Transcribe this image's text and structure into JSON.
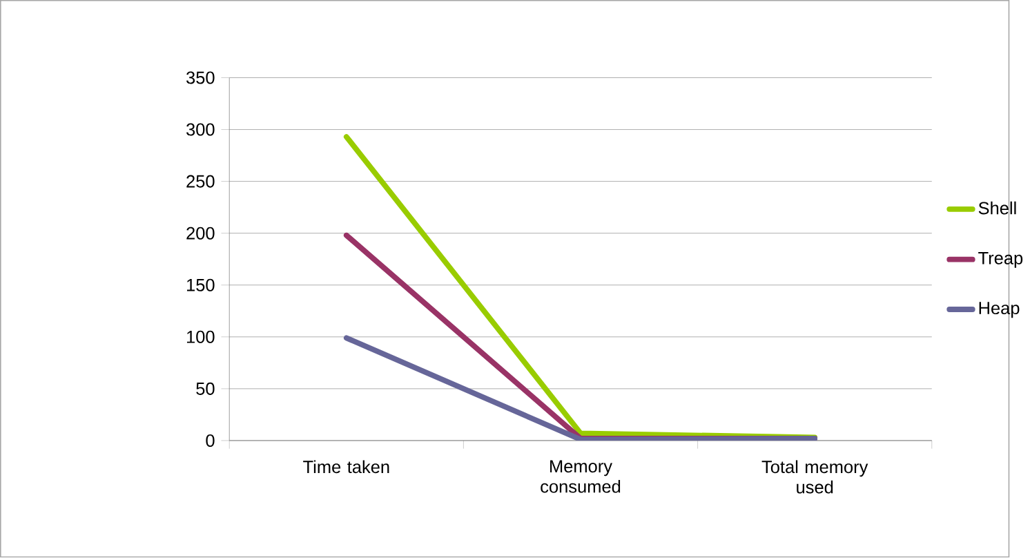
{
  "chart_data": {
    "type": "line",
    "categories": [
      "Time taken",
      "Memory consumed",
      "Total memory used"
    ],
    "series": [
      {
        "name": "Shell",
        "color": "#99cc00",
        "values": [
          293,
          7,
          3
        ]
      },
      {
        "name": "Treap",
        "color": "#993366",
        "values": [
          198,
          2,
          2
        ]
      },
      {
        "name": "Heap",
        "color": "#666699",
        "values": [
          99,
          1,
          2
        ]
      }
    ],
    "ylim": [
      0,
      350
    ],
    "yticks": [
      0,
      50,
      100,
      150,
      200,
      250,
      300,
      350
    ],
    "grid": "y",
    "legend": "right",
    "marker": "none",
    "line_style": "solid"
  }
}
